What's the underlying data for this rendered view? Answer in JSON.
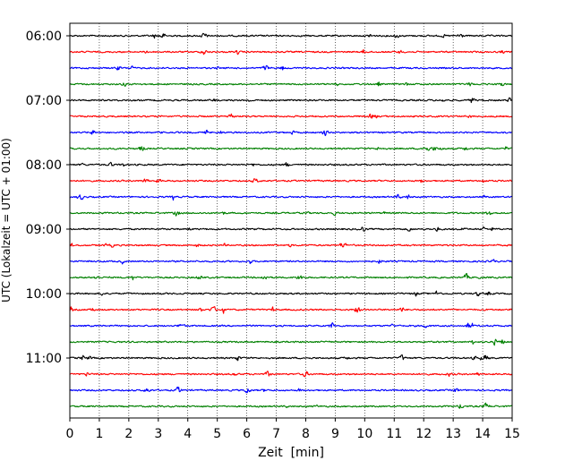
{
  "chart_data": {
    "type": "line",
    "title": "",
    "xlabel": "Zeit  [min]",
    "ylabel": "UTC (Lokalzeit = UTC + 01:00)",
    "xlim": [
      0,
      15
    ],
    "x_ticks": [
      "0",
      "1",
      "2",
      "3",
      "4",
      "5",
      "6",
      "7",
      "8",
      "9",
      "10",
      "11",
      "12",
      "13",
      "14",
      "15"
    ],
    "y_tick_labels": [
      "06:00",
      "07:00",
      "08:00",
      "09:00",
      "10:00",
      "11:00"
    ],
    "grid": "vertical dotted lines at each minute",
    "trace_colors": [
      "#000000",
      "#ff0000",
      "#0000ff",
      "#008000"
    ],
    "traces": [
      {
        "start": "06:00",
        "color": "#000000"
      },
      {
        "start": "06:15",
        "color": "#ff0000"
      },
      {
        "start": "06:30",
        "color": "#0000ff"
      },
      {
        "start": "06:45",
        "color": "#008000"
      },
      {
        "start": "07:00",
        "color": "#000000"
      },
      {
        "start": "07:15",
        "color": "#ff0000"
      },
      {
        "start": "07:30",
        "color": "#0000ff"
      },
      {
        "start": "07:45",
        "color": "#008000"
      },
      {
        "start": "08:00",
        "color": "#000000"
      },
      {
        "start": "08:15",
        "color": "#ff0000"
      },
      {
        "start": "08:30",
        "color": "#0000ff"
      },
      {
        "start": "08:45",
        "color": "#008000"
      },
      {
        "start": "09:00",
        "color": "#000000"
      },
      {
        "start": "09:15",
        "color": "#ff0000"
      },
      {
        "start": "09:30",
        "color": "#0000ff"
      },
      {
        "start": "09:45",
        "color": "#008000"
      },
      {
        "start": "10:00",
        "color": "#000000"
      },
      {
        "start": "10:15",
        "color": "#ff0000"
      },
      {
        "start": "10:30",
        "color": "#0000ff"
      },
      {
        "start": "10:45",
        "color": "#008000"
      },
      {
        "start": "11:00",
        "color": "#000000"
      },
      {
        "start": "11:15",
        "color": "#ff0000"
      },
      {
        "start": "11:30",
        "color": "#0000ff"
      },
      {
        "start": "11:45",
        "color": "#008000"
      }
    ]
  }
}
